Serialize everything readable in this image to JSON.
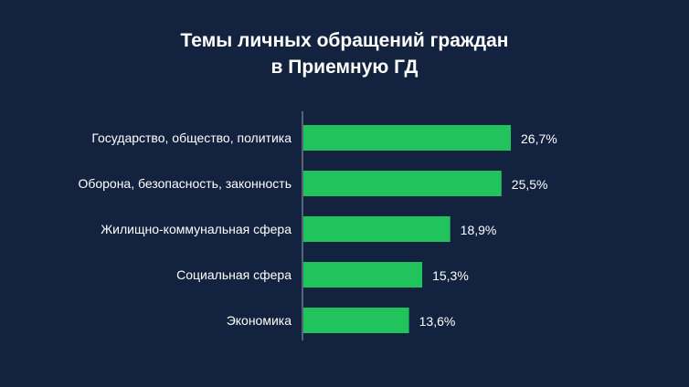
{
  "chart_data": {
    "type": "bar",
    "orientation": "horizontal",
    "title_lines": [
      "Темы личных обращений граждан",
      "в Приемную ГД"
    ],
    "categories": [
      "Государство, общество, политика",
      "Оборона, безопасность, законность",
      "Жилищно-коммунальная сфера",
      "Социальная сфера",
      "Экономика"
    ],
    "values": [
      26.7,
      25.5,
      18.9,
      15.3,
      13.6
    ],
    "value_labels": [
      "26,7%",
      "25,5%",
      "18,9%",
      "15,3%",
      "13,6%"
    ],
    "xlim": [
      0,
      26.7
    ],
    "grid": false,
    "legend": "none"
  },
  "colors": {
    "background": "#13223f",
    "bar": "#21c35c",
    "axis": "#9aa3b5",
    "text": "#ffffff"
  }
}
